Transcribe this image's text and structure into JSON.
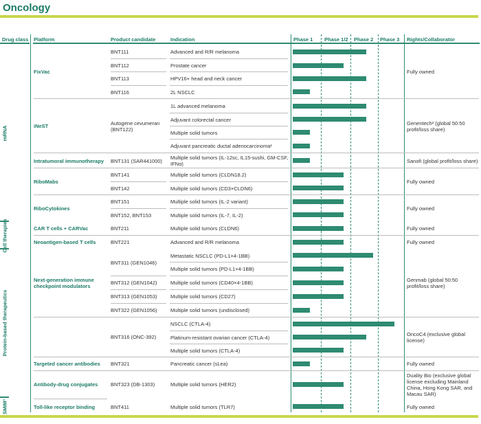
{
  "title": "Oncology",
  "headers": {
    "drug_class": "Drug class",
    "platform": "Platform",
    "product": "Product candidate",
    "indication": "Indication",
    "phase1": "Phase 1",
    "phase12": "Phase 1/2",
    "phase2": "Phase 2",
    "phase3": "Phase 3",
    "rights": "Rights/Collaborator"
  },
  "drug_classes": [
    "mRNA",
    "Cell therapies",
    "Protein-based therapeutics",
    "SMIM³"
  ],
  "platforms": [
    "FixVac",
    "iNeST",
    "Intratumoral immunotherapy",
    "RiboMabs",
    "RiboCytokines",
    "CAR T cells + CARVac",
    "Neoantigen-based T cells",
    "Next-generation immune checkpoint modulators",
    "Targeted cancer antibodies",
    "Antibody-drug conjugates",
    "Toll-like receptor binding"
  ],
  "products": [
    "BNT111",
    "BNT112",
    "BNT113",
    "BNT116",
    "Autogene cevumeran (BNT122)",
    "BNT131 (SAR441000)",
    "BNT141",
    "BNT142",
    "BNT151",
    "BNT152, BNT153",
    "BNT211",
    "BNT221",
    "BNT311 (GEN1046)",
    "BNT312 (GEN1042)",
    "BNT313 (GEN1053)",
    "BNT322 (GEN1056)",
    "BNT316 (ONC-392)",
    "BNT321",
    "BNT323 (DB-1303)",
    "BNT411"
  ],
  "indications": [
    "Advanced and R/R melanoma",
    "Prostate cancer",
    "HPV16+ head and neck cancer",
    "2L NSCLC",
    "1L advanced melanoma",
    "Adjuvant colorectal cancer",
    "Multiple solid tumors",
    "Adjuvant pancreatic ductal adenocarcinoma¹",
    "Multiple solid tumors (IL-12sc, IL15-sushi, GM-CSF, IFNα)",
    "Multiple solid tumors (CLDN18.2)",
    "Multiple solid tumors (CD3×CLDN6)",
    "Multiple solid tumors (IL-2 variant)",
    "Multiple solid tumors (IL-7, IL-2)",
    "Multiple solid tumors (CLDN6)",
    "Advanced and R/R melanoma",
    "Metastatic NSCLC (PD-L1×4-1BB)",
    "Multiple solid tumors (PD-L1×4-1BB)",
    "Multiple solid tumors (CD40×4-1BB)",
    "Multiple solid tumors (CD27)",
    "Multiple solid tumors (undisclosed)",
    "NSCLC (CTLA-4)",
    "Platinum-resistant ovarian cancer (CTLA-4)",
    "Multiple solid tumors (CTLA-4)",
    "Pancreatic cancer (sLea)",
    "Multiple solid tumors (HER2)",
    "Multiple solid tumors (TLR7)"
  ],
  "progress": [
    2.6,
    1.8,
    2.6,
    0.6,
    2.6,
    2.6,
    0.6,
    0.6,
    0.6,
    1.8,
    1.8,
    1.8,
    1.8,
    1.8,
    1.8,
    2.85,
    1.8,
    1.8,
    1.8,
    0.6,
    3.6,
    2.6,
    1.8,
    0.6,
    1.8,
    1.8
  ],
  "rights": [
    "Fully owned",
    "Genentech² (global 50:50 profit/loss share)",
    "Sanofi (global profit/loss share)",
    "Fully owned",
    "Fully owned",
    "Fully owned",
    "Fully owned",
    "Genmab (global 50:50 profit/loss share)",
    "OncoC4 (exclusive global license)",
    "Fully owned",
    "Duality Bio (exclusive global license excluding Mainland China, Hong Kong SAR, and Macau SAR)",
    "Fully owned"
  ],
  "colors": {
    "accent": "#2e8b72",
    "title": "#1b7b67",
    "line": "#c8d64a"
  }
}
